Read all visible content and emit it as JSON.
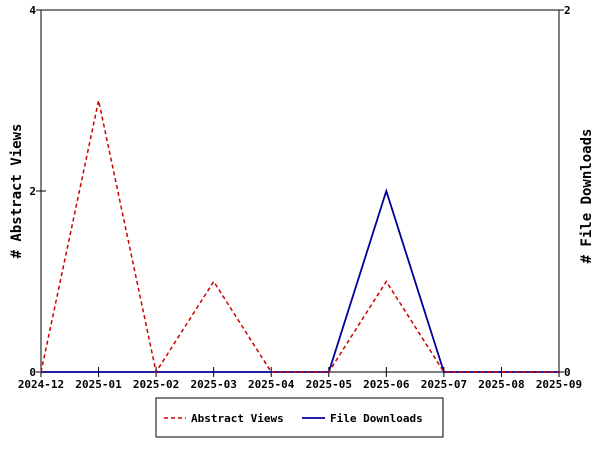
{
  "chart_data": {
    "type": "line",
    "categories": [
      "2024-12",
      "2025-01",
      "2025-02",
      "2025-03",
      "2025-04",
      "2025-05",
      "2025-06",
      "2025-07",
      "2025-08",
      "2025-09"
    ],
    "series": [
      {
        "name": "Abstract Views",
        "axis": "left",
        "color": "#cc0000",
        "dashed": true,
        "values": [
          0,
          3,
          0,
          1,
          0,
          0,
          1,
          0,
          0,
          0
        ]
      },
      {
        "name": "File Downloads",
        "axis": "right",
        "color": "#000099",
        "dashed": false,
        "values": [
          0,
          0,
          0,
          0,
          0,
          0,
          1,
          0,
          0,
          0
        ]
      }
    ],
    "ylabel": "# Abstract Views",
    "y2label": "# File Downloads",
    "ylim": [
      0,
      4
    ],
    "y2lim": [
      0,
      2
    ],
    "yticks": [
      0,
      2,
      4
    ],
    "y2ticks": [
      0,
      2
    ],
    "grid": false,
    "legend_position": "bottom"
  }
}
